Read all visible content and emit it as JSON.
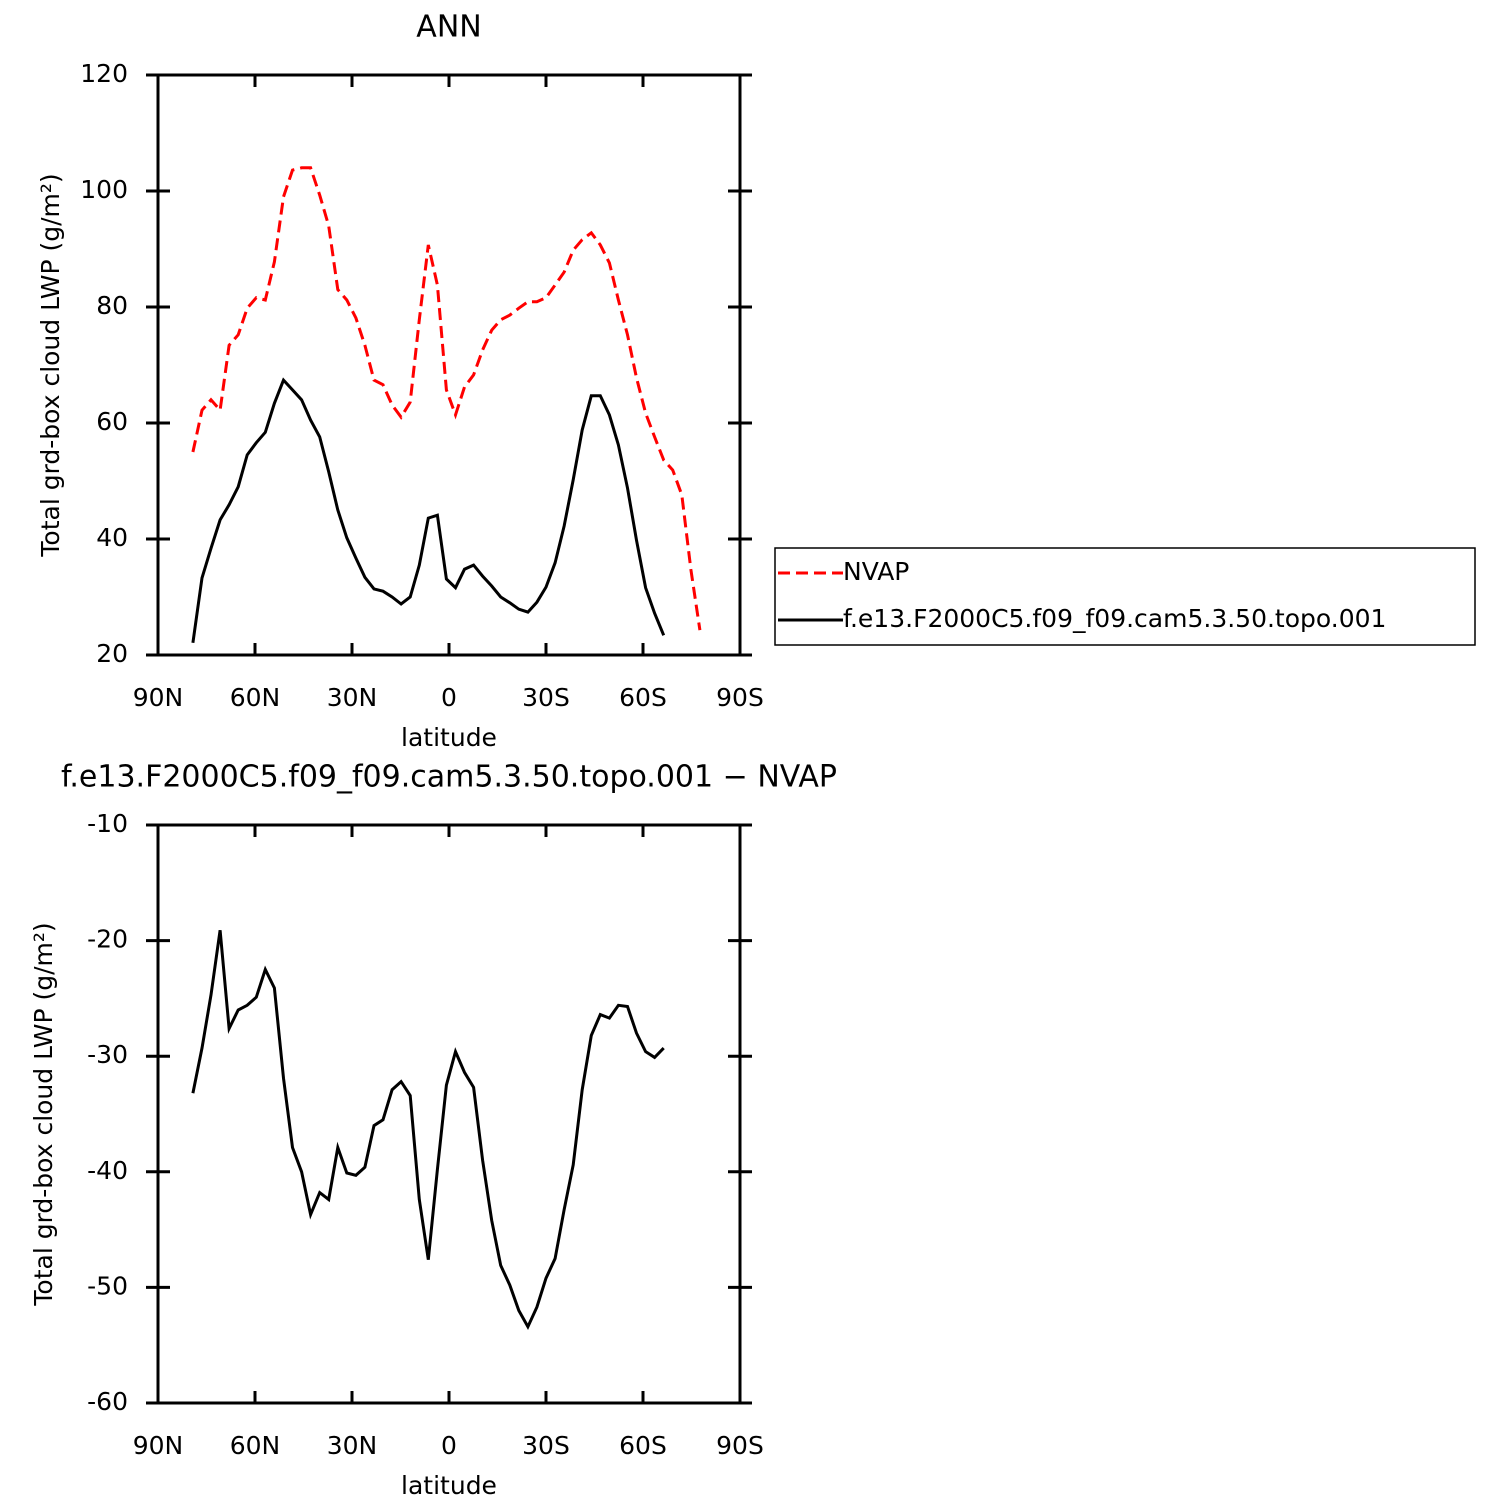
{
  "chart_data": [
    {
      "type": "line",
      "title": "ANN",
      "xlabel": "latitude",
      "ylabel": "Total grd-box cloud LWP (g/m²)",
      "xlim": [
        90,
        -90
      ],
      "ylim": [
        20,
        120
      ],
      "xticks": [
        {
          "value": 90,
          "label": "90N"
        },
        {
          "value": 60,
          "label": "60N"
        },
        {
          "value": 30,
          "label": "30N"
        },
        0,
        {
          "value": -30,
          "label": "30S"
        },
        {
          "value": -60,
          "label": "60S"
        },
        {
          "value": -90,
          "label": "90S"
        }
      ],
      "yticks": [
        20,
        40,
        60,
        80,
        100,
        120
      ],
      "legend": "right",
      "x": [
        79.2,
        76.4,
        73.6,
        70.8,
        68,
        65.2,
        62.4,
        59.6,
        56.8,
        54,
        51.2,
        48.4,
        45.6,
        42.8,
        40,
        37.2,
        34.4,
        31.6,
        28.8,
        26,
        23.2,
        20.4,
        17.6,
        14.8,
        12,
        9.2,
        6.4,
        3.6,
        0.8,
        -2,
        -4.8,
        -7.6,
        -10.4,
        -13.2,
        -16,
        -18.8,
        -21.6,
        -24.4,
        -27.2,
        -30,
        -32.8,
        -35.6,
        -38.4,
        -41.2,
        -44,
        -46.8,
        -49.6,
        -52.4,
        -55.2,
        -58,
        -60.8,
        -63.6,
        -66.4,
        -69.2,
        -72,
        -74.8,
        -77.6
      ],
      "series": [
        {
          "name": "NVAP",
          "color": "#ff0000",
          "dashed": true,
          "values": [
            55,
            62.2,
            64,
            62.2,
            73.4,
            75.2,
            79.8,
            81.6,
            81.2,
            87.8,
            99,
            103.6,
            104,
            104,
            99.3,
            94,
            83,
            81.2,
            78.1,
            73.4,
            67.4,
            66.6,
            63.1,
            61,
            63.6,
            77.8,
            90.7,
            83.8,
            65.7,
            61.4,
            66.2,
            68.3,
            72.6,
            76,
            77.8,
            78.6,
            79.8,
            80.9,
            80.9,
            81.6,
            83.8,
            86,
            89.8,
            91.6,
            92.8,
            90.7,
            87.6,
            81.2,
            75.2,
            67.8,
            61.7,
            57.6,
            53.6,
            51.9,
            47.6,
            34.7,
            24.3
          ]
        },
        {
          "name": "f.e13.F2000C5.f09_f09.cam5.3.50.topo.001",
          "color": "#000000",
          "dashed": false,
          "values": [
            22.1,
            33.3,
            38.4,
            43.3,
            45.9,
            49,
            54.5,
            56.6,
            58.4,
            63.4,
            67.4,
            65.7,
            64,
            60.5,
            57.6,
            51.6,
            45,
            40.2,
            36.7,
            33.4,
            31.4,
            31,
            30,
            28.8,
            30,
            35.5,
            43.6,
            44.1,
            33.1,
            31.6,
            34.8,
            35.5,
            33.6,
            31.9,
            30,
            29,
            27.9,
            27.4,
            29.1,
            31.7,
            35.9,
            42.2,
            50.2,
            58.8,
            64.7,
            64.7,
            61.4,
            56.2,
            48.8,
            39.8,
            31.6,
            27.2,
            23.4,
            null,
            null,
            null,
            null
          ]
        }
      ]
    },
    {
      "type": "line",
      "title": "f.e13.F2000C5.f09_f09.cam5.3.50.topo.001 − NVAP",
      "xlabel": "latitude",
      "ylabel": "Total grd-box cloud LWP (g/m²)",
      "xlim": [
        90,
        -90
      ],
      "ylim": [
        -60,
        -10
      ],
      "xticks": [
        {
          "value": 90,
          "label": "90N"
        },
        {
          "value": 60,
          "label": "60N"
        },
        {
          "value": 30,
          "label": "30N"
        },
        0,
        {
          "value": -30,
          "label": "30S"
        },
        {
          "value": -60,
          "label": "60S"
        },
        {
          "value": -90,
          "label": "90S"
        }
      ],
      "yticks": [
        -60,
        -50,
        -40,
        -30,
        -20,
        -10
      ],
      "x": [
        79.2,
        76.4,
        73.6,
        70.8,
        68,
        65.2,
        62.4,
        59.6,
        56.8,
        54,
        51.2,
        48.4,
        45.6,
        42.8,
        40,
        37.2,
        34.4,
        31.6,
        28.8,
        26,
        23.2,
        20.4,
        17.6,
        14.8,
        12,
        9.2,
        6.4,
        3.6,
        0.8,
        -2,
        -4.8,
        -7.6,
        -10.4,
        -13.2,
        -16,
        -18.8,
        -21.6,
        -24.4,
        -27.2,
        -30,
        -32.8,
        -35.6,
        -38.4,
        -41.2,
        -44,
        -46.8,
        -49.6,
        -52.4,
        -55.2,
        -58,
        -60.8,
        -63.6,
        -66.4
      ],
      "series": [
        {
          "color": "#000000",
          "dashed": false,
          "values": [
            -33.2,
            -29.3,
            -24.7,
            -19.1,
            -27.6,
            -26,
            -25.6,
            -24.9,
            -22.5,
            -24.1,
            -31.9,
            -37.9,
            -40,
            -43.7,
            -41.8,
            -42.4,
            -37.9,
            -40.1,
            -40.3,
            -39.6,
            -36,
            -35.5,
            -32.9,
            -32.2,
            -33.4,
            -42.4,
            -47.6,
            -39.8,
            -32.5,
            -29.6,
            -31.4,
            -32.7,
            -39,
            -44.2,
            -48.1,
            -49.8,
            -52,
            -53.4,
            -51.7,
            -49.2,
            -47.5,
            -43.3,
            -39.4,
            -32.9,
            -28.2,
            -26.4,
            -26.7,
            -25.6,
            -25.7,
            -28,
            -29.6,
            -30.1,
            -29.3
          ]
        }
      ]
    }
  ]
}
